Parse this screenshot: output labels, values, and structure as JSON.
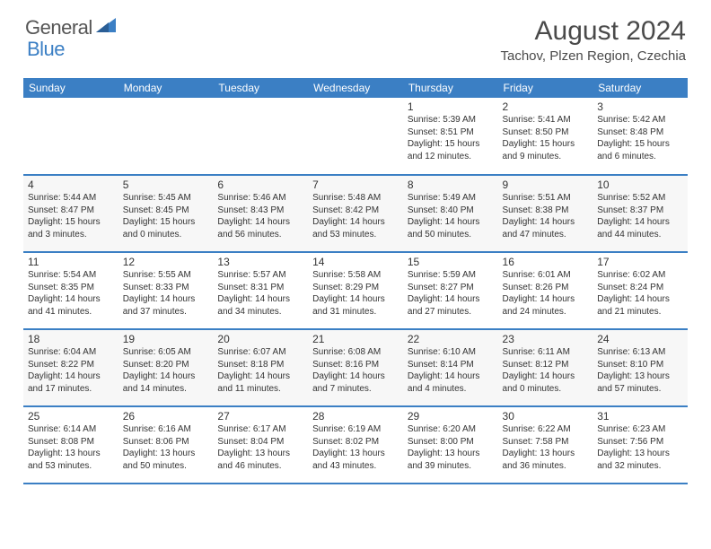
{
  "logo": {
    "text_general": "General",
    "text_blue": "Blue"
  },
  "title": "August 2024",
  "location": "Tachov, Plzen Region, Czechia",
  "colors": {
    "header_bg": "#3b7fc4",
    "header_text": "#ffffff",
    "cell_border": "#3b7fc4",
    "alt_row": "#f7f7f7",
    "text": "#333333"
  },
  "weekdays": [
    "Sunday",
    "Monday",
    "Tuesday",
    "Wednesday",
    "Thursday",
    "Friday",
    "Saturday"
  ],
  "weeks": [
    [
      null,
      null,
      null,
      null,
      {
        "d": "1",
        "sr": "5:39 AM",
        "ss": "8:51 PM",
        "dl": "15 hours and 12 minutes."
      },
      {
        "d": "2",
        "sr": "5:41 AM",
        "ss": "8:50 PM",
        "dl": "15 hours and 9 minutes."
      },
      {
        "d": "3",
        "sr": "5:42 AM",
        "ss": "8:48 PM",
        "dl": "15 hours and 6 minutes."
      }
    ],
    [
      {
        "d": "4",
        "sr": "5:44 AM",
        "ss": "8:47 PM",
        "dl": "15 hours and 3 minutes."
      },
      {
        "d": "5",
        "sr": "5:45 AM",
        "ss": "8:45 PM",
        "dl": "15 hours and 0 minutes."
      },
      {
        "d": "6",
        "sr": "5:46 AM",
        "ss": "8:43 PM",
        "dl": "14 hours and 56 minutes."
      },
      {
        "d": "7",
        "sr": "5:48 AM",
        "ss": "8:42 PM",
        "dl": "14 hours and 53 minutes."
      },
      {
        "d": "8",
        "sr": "5:49 AM",
        "ss": "8:40 PM",
        "dl": "14 hours and 50 minutes."
      },
      {
        "d": "9",
        "sr": "5:51 AM",
        "ss": "8:38 PM",
        "dl": "14 hours and 47 minutes."
      },
      {
        "d": "10",
        "sr": "5:52 AM",
        "ss": "8:37 PM",
        "dl": "14 hours and 44 minutes."
      }
    ],
    [
      {
        "d": "11",
        "sr": "5:54 AM",
        "ss": "8:35 PM",
        "dl": "14 hours and 41 minutes."
      },
      {
        "d": "12",
        "sr": "5:55 AM",
        "ss": "8:33 PM",
        "dl": "14 hours and 37 minutes."
      },
      {
        "d": "13",
        "sr": "5:57 AM",
        "ss": "8:31 PM",
        "dl": "14 hours and 34 minutes."
      },
      {
        "d": "14",
        "sr": "5:58 AM",
        "ss": "8:29 PM",
        "dl": "14 hours and 31 minutes."
      },
      {
        "d": "15",
        "sr": "5:59 AM",
        "ss": "8:27 PM",
        "dl": "14 hours and 27 minutes."
      },
      {
        "d": "16",
        "sr": "6:01 AM",
        "ss": "8:26 PM",
        "dl": "14 hours and 24 minutes."
      },
      {
        "d": "17",
        "sr": "6:02 AM",
        "ss": "8:24 PM",
        "dl": "14 hours and 21 minutes."
      }
    ],
    [
      {
        "d": "18",
        "sr": "6:04 AM",
        "ss": "8:22 PM",
        "dl": "14 hours and 17 minutes."
      },
      {
        "d": "19",
        "sr": "6:05 AM",
        "ss": "8:20 PM",
        "dl": "14 hours and 14 minutes."
      },
      {
        "d": "20",
        "sr": "6:07 AM",
        "ss": "8:18 PM",
        "dl": "14 hours and 11 minutes."
      },
      {
        "d": "21",
        "sr": "6:08 AM",
        "ss": "8:16 PM",
        "dl": "14 hours and 7 minutes."
      },
      {
        "d": "22",
        "sr": "6:10 AM",
        "ss": "8:14 PM",
        "dl": "14 hours and 4 minutes."
      },
      {
        "d": "23",
        "sr": "6:11 AM",
        "ss": "8:12 PM",
        "dl": "14 hours and 0 minutes."
      },
      {
        "d": "24",
        "sr": "6:13 AM",
        "ss": "8:10 PM",
        "dl": "13 hours and 57 minutes."
      }
    ],
    [
      {
        "d": "25",
        "sr": "6:14 AM",
        "ss": "8:08 PM",
        "dl": "13 hours and 53 minutes."
      },
      {
        "d": "26",
        "sr": "6:16 AM",
        "ss": "8:06 PM",
        "dl": "13 hours and 50 minutes."
      },
      {
        "d": "27",
        "sr": "6:17 AM",
        "ss": "8:04 PM",
        "dl": "13 hours and 46 minutes."
      },
      {
        "d": "28",
        "sr": "6:19 AM",
        "ss": "8:02 PM",
        "dl": "13 hours and 43 minutes."
      },
      {
        "d": "29",
        "sr": "6:20 AM",
        "ss": "8:00 PM",
        "dl": "13 hours and 39 minutes."
      },
      {
        "d": "30",
        "sr": "6:22 AM",
        "ss": "7:58 PM",
        "dl": "13 hours and 36 minutes."
      },
      {
        "d": "31",
        "sr": "6:23 AM",
        "ss": "7:56 PM",
        "dl": "13 hours and 32 minutes."
      }
    ]
  ],
  "labels": {
    "sunrise": "Sunrise:",
    "sunset": "Sunset:",
    "daylight": "Daylight:"
  }
}
